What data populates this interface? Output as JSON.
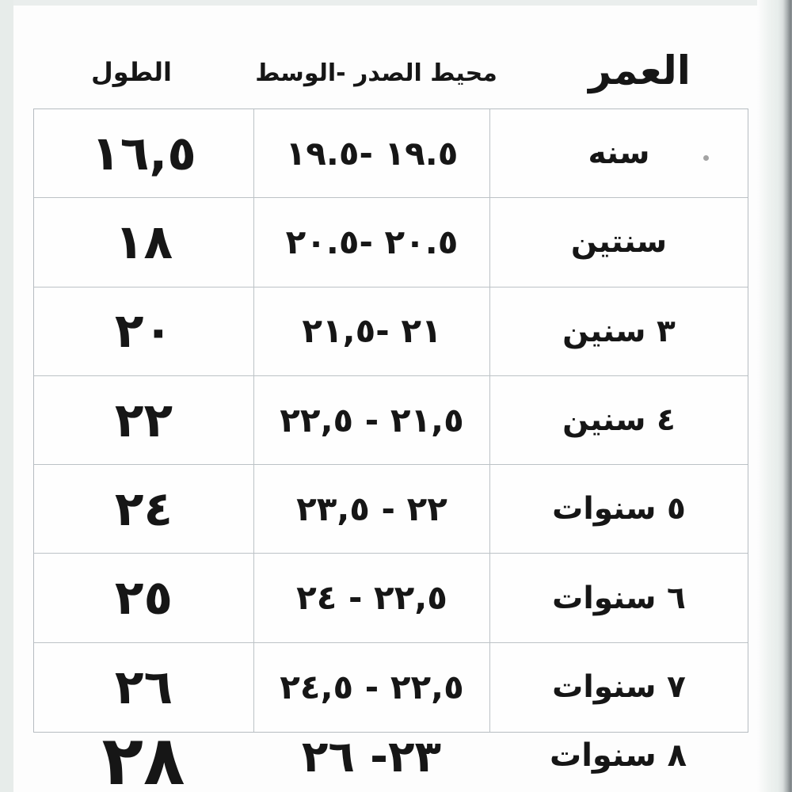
{
  "headers": {
    "age": "العمر",
    "chest_waist": "محيط الصدر -الوسط",
    "length": "الطول"
  },
  "rows": [
    {
      "age": "سنه",
      "range": "١٩.٥ -١٩.٥",
      "length": "١٦,٥"
    },
    {
      "age": "سنتين",
      "range": "٢٠.٥ -٢٠.٥",
      "length": "١٨"
    },
    {
      "age": "٣ سنين",
      "range": "٢١ -٢١,٥",
      "length": "٢٠"
    },
    {
      "age": "٤ سنين",
      "range": "٢١,٥ - ٢٢,٥",
      "length": "٢٢"
    },
    {
      "age": "٥ سنوات",
      "range": "٢٢ - ٢٣,٥",
      "length": "٢٤"
    },
    {
      "age": "٦ سنوات",
      "range": "٢٢,٥ - ٢٤",
      "length": "٢٥"
    },
    {
      "age": "٧ سنوات",
      "range": "٢٢,٥ - ٢٤,٥",
      "length": "٢٦"
    },
    {
      "age": "٨ سنوات",
      "range": "٢٣- ٢٦",
      "length": "٢٨"
    }
  ],
  "colors": {
    "table_border": "#b6bcc1",
    "edge_strip": "#e7ecea",
    "edge_shadow": "#7d8386",
    "text": "#161616"
  }
}
